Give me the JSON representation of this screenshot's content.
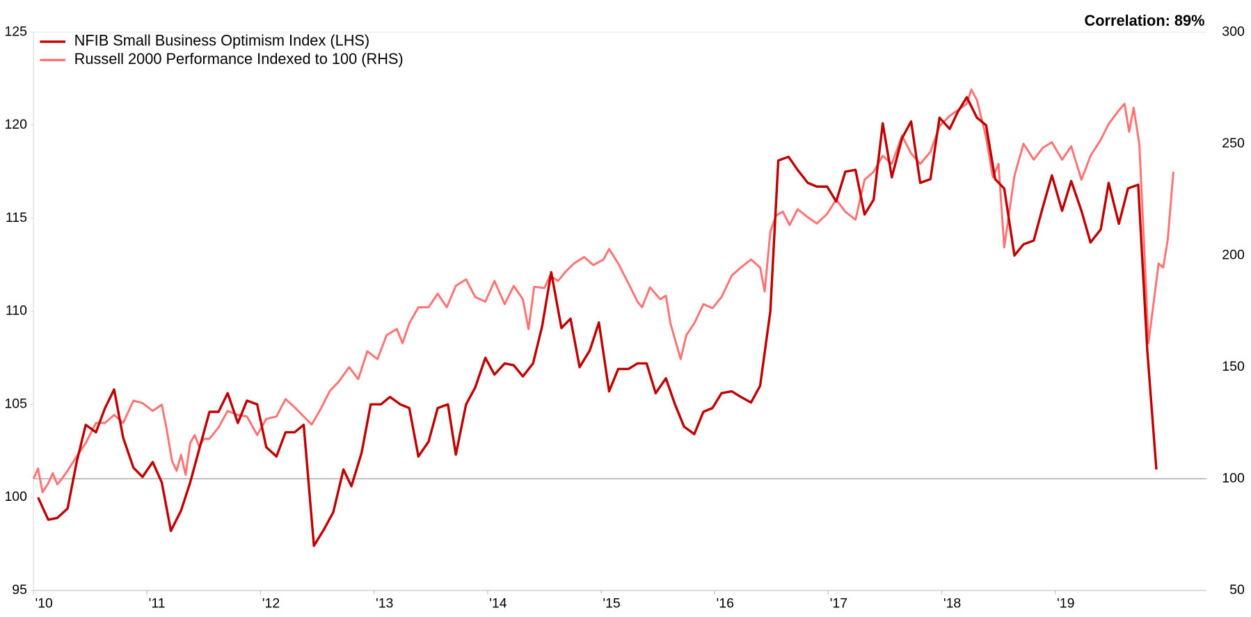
{
  "chart_data": {
    "type": "line",
    "annotation": "Correlation: 89%",
    "legend": "upper left",
    "xlim": [
      2010,
      2020.33
    ],
    "xticks": [
      {
        "value": 2010,
        "label": "'10"
      },
      {
        "value": 2011,
        "label": "'11"
      },
      {
        "value": 2012,
        "label": "'12"
      },
      {
        "value": 2013,
        "label": "'13"
      },
      {
        "value": 2014,
        "label": "'14"
      },
      {
        "value": 2015,
        "label": "'15"
      },
      {
        "value": 2016,
        "label": "'16"
      },
      {
        "value": 2017,
        "label": "'17"
      },
      {
        "value": 2018,
        "label": "'18"
      },
      {
        "value": 2019,
        "label": "'19"
      }
    ],
    "ylim": [
      95,
      125
    ],
    "yticks": [
      95,
      100,
      105,
      110,
      115,
      120,
      125
    ],
    "y2lim": [
      50,
      300
    ],
    "y2ticks": [
      50,
      100,
      150,
      200,
      250,
      300
    ],
    "y2_baseline": 100,
    "series": [
      {
        "name": "NFIB Small Business Optimism Index (LHS)",
        "color": "#c00000",
        "x": [
          2010.04,
          2010.13,
          2010.21,
          2010.3,
          2010.38,
          2010.46,
          2010.55,
          2010.63,
          2010.71,
          2010.79,
          2010.88,
          2010.96,
          2011.05,
          2011.13,
          2011.21,
          2011.3,
          2011.38,
          2011.46,
          2011.55,
          2011.63,
          2011.71,
          2011.8,
          2011.88,
          2011.97,
          2012.05,
          2012.14,
          2012.22,
          2012.3,
          2012.38,
          2012.47,
          2012.56,
          2012.64,
          2012.73,
          2012.8,
          2012.89,
          2012.97,
          2013.06,
          2013.14,
          2013.23,
          2013.31,
          2013.39,
          2013.48,
          2013.56,
          2013.65,
          2013.72,
          2013.81,
          2013.89,
          2013.98,
          2014.06,
          2014.15,
          2014.23,
          2014.31,
          2014.4,
          2014.48,
          2014.56,
          2014.65,
          2014.73,
          2014.81,
          2014.9,
          2014.98,
          2015.07,
          2015.15,
          2015.24,
          2015.32,
          2015.4,
          2015.48,
          2015.57,
          2015.65,
          2015.73,
          2015.82,
          2015.9,
          2015.98,
          2016.06,
          2016.15,
          2016.23,
          2016.32,
          2016.4,
          2016.49,
          2016.56,
          2016.65,
          2016.73,
          2016.82,
          2016.9,
          2016.99,
          2017.07,
          2017.15,
          2017.24,
          2017.32,
          2017.4,
          2017.48,
          2017.56,
          2017.65,
          2017.73,
          2017.81,
          2017.9,
          2017.98,
          2018.07,
          2018.14,
          2018.22,
          2018.31,
          2018.39,
          2018.47,
          2018.55,
          2018.64,
          2018.72,
          2018.81,
          2018.89,
          2018.97,
          2019.06,
          2019.14,
          2019.23,
          2019.31,
          2019.4,
          2019.47,
          2019.56,
          2019.64,
          2019.73,
          2019.81,
          2019.89
        ],
        "values": [
          100.0,
          98.8,
          98.9,
          99.4,
          101.9,
          103.9,
          103.5,
          104.8,
          105.8,
          103.2,
          101.6,
          101.1,
          101.9,
          100.8,
          98.2,
          99.3,
          100.8,
          102.6,
          104.6,
          104.6,
          105.6,
          104.0,
          105.2,
          105.0,
          102.7,
          102.2,
          103.5,
          103.5,
          103.9,
          97.4,
          98.3,
          99.2,
          101.5,
          100.6,
          102.4,
          105.0,
          105.0,
          105.4,
          105.0,
          104.8,
          102.2,
          103.0,
          104.8,
          105.0,
          102.3,
          105.0,
          105.9,
          107.5,
          106.6,
          107.2,
          107.1,
          106.5,
          107.2,
          109.2,
          112.1,
          109.1,
          109.6,
          107.0,
          107.9,
          109.4,
          105.7,
          106.9,
          106.9,
          107.2,
          107.2,
          105.6,
          106.4,
          105.0,
          103.8,
          103.4,
          104.6,
          104.8,
          105.6,
          105.7,
          105.4,
          105.1,
          106.0,
          110.0,
          118.1,
          118.3,
          117.6,
          116.9,
          116.7,
          116.7,
          115.9,
          117.5,
          117.6,
          115.2,
          116.0,
          120.1,
          117.2,
          119.3,
          120.2,
          116.9,
          117.1,
          120.4,
          119.8,
          120.7,
          121.5,
          120.4,
          120.0,
          117.1,
          116.6,
          113.0,
          113.6,
          113.8,
          115.6,
          117.3,
          115.4,
          117.0,
          115.4,
          113.7,
          114.4,
          116.9,
          114.7,
          116.6,
          116.8,
          107.9,
          101.5
        ]
      },
      {
        "name": "Russell 2000 Performance Indexed to 100 (RHS)",
        "color": "#ff7272",
        "axis": "y2",
        "x": [
          2010.0,
          2010.04,
          2010.08,
          2010.13,
          2010.17,
          2010.21,
          2010.25,
          2010.3,
          2010.38,
          2010.46,
          2010.55,
          2010.63,
          2010.71,
          2010.79,
          2010.88,
          2010.96,
          2011.05,
          2011.13,
          2011.17,
          2011.22,
          2011.26,
          2011.3,
          2011.34,
          2011.38,
          2011.42,
          2011.46,
          2011.5,
          2011.55,
          2011.63,
          2011.71,
          2011.8,
          2011.88,
          2011.97,
          2012.05,
          2012.14,
          2012.22,
          2012.3,
          2012.38,
          2012.45,
          2012.52,
          2012.61,
          2012.69,
          2012.78,
          2012.86,
          2012.94,
          2013.03,
          2013.11,
          2013.2,
          2013.25,
          2013.31,
          2013.39,
          2013.48,
          2013.56,
          2013.64,
          2013.72,
          2013.81,
          2013.89,
          2013.98,
          2014.06,
          2014.15,
          2014.23,
          2014.31,
          2014.36,
          2014.41,
          2014.5,
          2014.55,
          2014.62,
          2014.69,
          2014.76,
          2014.85,
          2014.93,
          2015.02,
          2015.07,
          2015.15,
          2015.24,
          2015.32,
          2015.36,
          2015.43,
          2015.52,
          2015.57,
          2015.61,
          2015.66,
          2015.7,
          2015.75,
          2015.82,
          2015.9,
          2015.98,
          2016.06,
          2016.15,
          2016.23,
          2016.32,
          2016.4,
          2016.44,
          2016.49,
          2016.54,
          2016.6,
          2016.66,
          2016.73,
          2016.82,
          2016.9,
          2016.99,
          2017.07,
          2017.15,
          2017.24,
          2017.32,
          2017.4,
          2017.48,
          2017.56,
          2017.65,
          2017.73,
          2017.81,
          2017.9,
          2017.98,
          2018.07,
          2018.14,
          2018.22,
          2018.26,
          2018.31,
          2018.39,
          2018.45,
          2018.5,
          2018.55,
          2018.64,
          2018.72,
          2018.81,
          2018.89,
          2018.97,
          2019.06,
          2019.14,
          2019.23,
          2019.31,
          2019.4,
          2019.47,
          2019.56,
          2019.61,
          2019.65,
          2019.69,
          2019.74,
          2019.78,
          2019.82,
          2019.87,
          2019.91,
          2019.95,
          2019.99,
          2020.04
        ],
        "values": [
          100,
          104.6,
          94,
          98,
          102.5,
          97.5,
          100,
          103.6,
          110,
          116,
          125,
          125,
          128.6,
          125,
          135,
          133.9,
          130.4,
          133.2,
          123,
          108,
          103.6,
          110.7,
          101.8,
          116,
          119.6,
          114.3,
          117.9,
          117.9,
          123,
          130.4,
          128.6,
          127.9,
          119.6,
          126.8,
          127.9,
          135.7,
          132,
          127.9,
          124.3,
          130.4,
          139.3,
          143.6,
          150,
          144.6,
          157.1,
          153.6,
          164.3,
          167.1,
          160.7,
          169.6,
          176.8,
          176.8,
          182.9,
          176.8,
          186.4,
          189.3,
          181.4,
          179.3,
          188.6,
          178.2,
          186.4,
          180.4,
          167,
          186,
          185.4,
          191,
          188.6,
          192.9,
          196.4,
          199.3,
          195.7,
          198.2,
          202.9,
          196.4,
          187.5,
          179.3,
          176.8,
          185.7,
          180.4,
          182,
          169.6,
          160.7,
          153.6,
          164.3,
          169.6,
          178.2,
          176.4,
          181.4,
          191,
          194.6,
          198.2,
          194.6,
          183.9,
          210.7,
          217.9,
          219.6,
          213.6,
          220.7,
          217.1,
          214.3,
          218.6,
          225,
          219.6,
          216,
          233.9,
          237.5,
          244.6,
          241,
          253.6,
          245.7,
          241,
          246.4,
          257.9,
          262.5,
          265,
          267.9,
          274.3,
          269.6,
          252.9,
          235,
          241,
          203.6,
          235.7,
          250,
          242.9,
          248.2,
          250.7,
          242.9,
          248.9,
          233.9,
          244.6,
          251.8,
          258.9,
          265,
          267.9,
          255.4,
          266.1,
          250,
          207,
          160.7,
          180.4,
          196.4,
          194.6,
          207,
          237.5
        ]
      }
    ]
  }
}
